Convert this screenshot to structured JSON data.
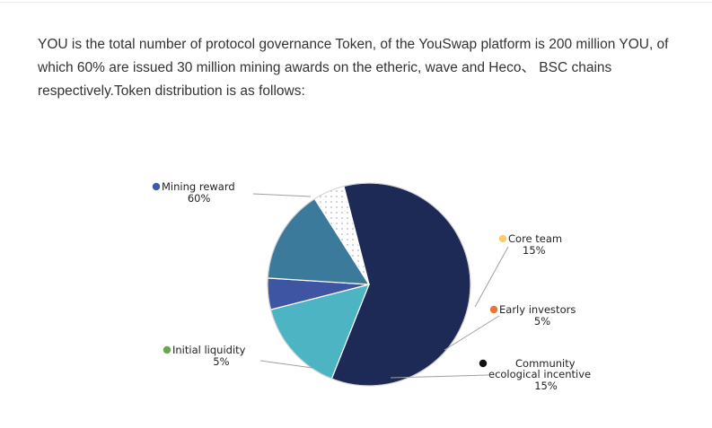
{
  "article": {
    "intro": "YOU is the total number of protocol governance Token, of the YouSwap platform is 200 million YOU, of which 60% are issued 30 million mining awards on the etheric, wave and Heco、 BSC chains respectively.Token distribution is as follows:"
  },
  "chart_data": {
    "type": "pie",
    "title": "",
    "slices": [
      {
        "name": "Mining reward",
        "value_label": "60%",
        "value": 60,
        "color": "#1c2a55",
        "legend_color": "#3f5ba9"
      },
      {
        "name": "Core team",
        "value_label": "15%",
        "value": 15,
        "color": "#4db4c4",
        "legend_color": "#f5cf6a"
      },
      {
        "name": "Early investors",
        "value_label": "5%",
        "value": 5,
        "color": "#3d55a3",
        "legend_color": "#e8763a"
      },
      {
        "name": "Community ecological incentive",
        "name_lines": [
          "Community",
          "ecological incentive"
        ],
        "value_label": "15%",
        "value": 15,
        "color": "#3b7a9b",
        "legend_color": "#111111"
      },
      {
        "name": "Initial liquidity",
        "value_label": "5%",
        "value": 5,
        "color": "#ffffff",
        "legend_color": "#6aa84f",
        "pattern": "dots"
      }
    ]
  }
}
